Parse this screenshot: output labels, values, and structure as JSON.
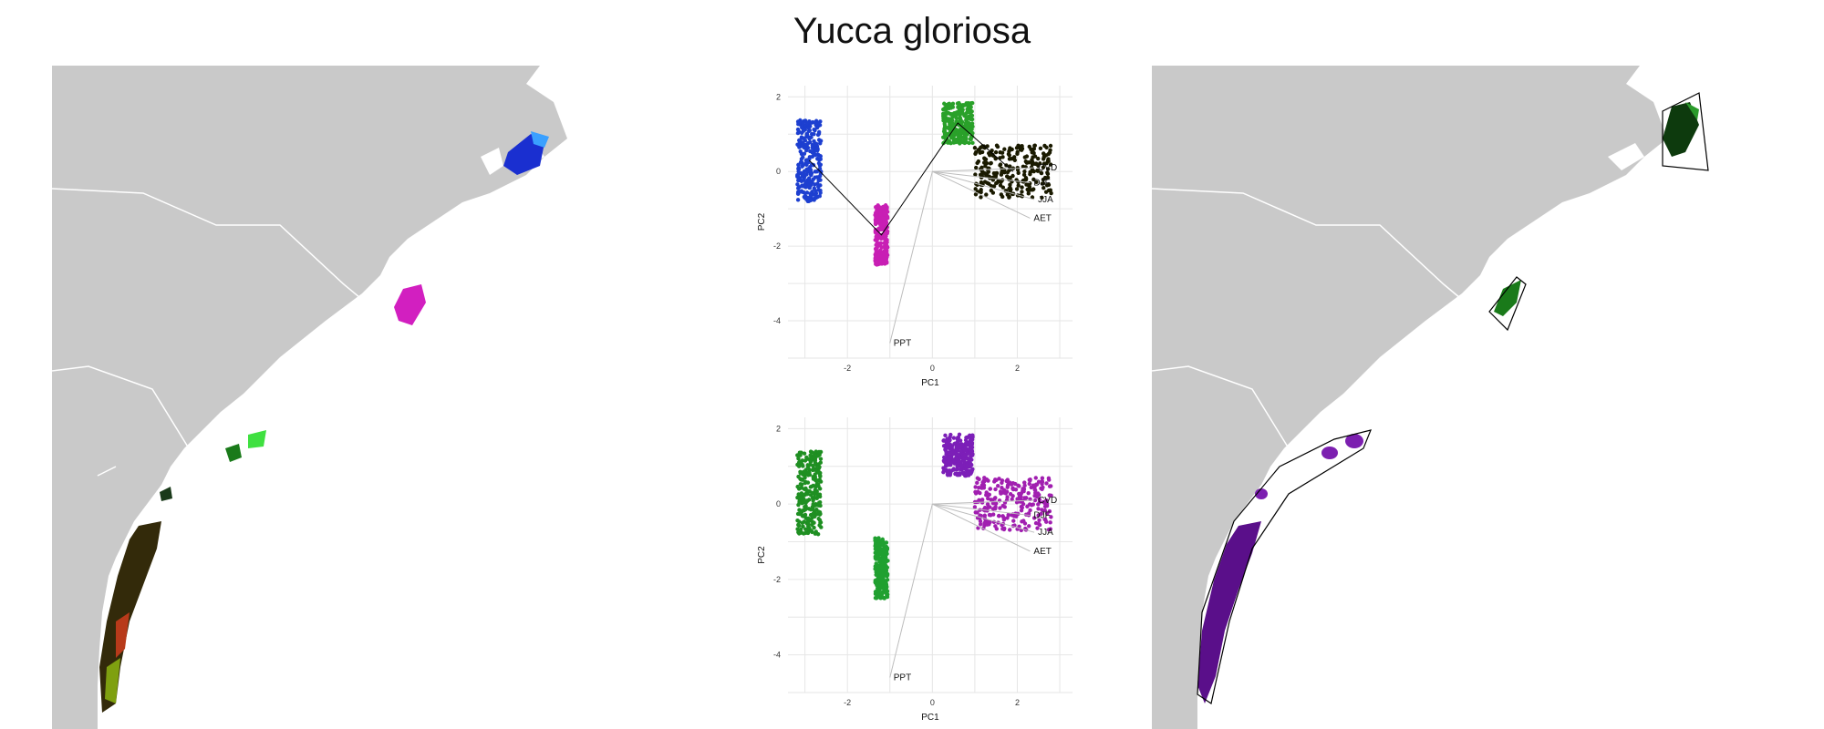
{
  "title": "Yucca gloriosa",
  "colors": {
    "land": "#c9c9c9",
    "water": "#ffffff",
    "border": "#ffffff",
    "grid": "#e6e6e6",
    "hull": "#000000",
    "vector": "#bdbdbd"
  },
  "maps": [
    {
      "name": "map-left",
      "style": "rgb-pc-gradient"
    },
    {
      "name": "map-right",
      "style": "cluster-colors-with-hulls"
    }
  ],
  "chart_data": [
    {
      "type": "scatter",
      "name": "pca-top",
      "xlabel": "PC1",
      "ylabel": "PC2",
      "xlim": [
        -3.4,
        3.3
      ],
      "ylim": [
        -5.0,
        2.3
      ],
      "xticks": [
        -2,
        0,
        2
      ],
      "yticks": [
        -4,
        -2,
        0,
        2
      ],
      "xtick_labels": [
        "-2",
        "0",
        "2"
      ],
      "ytick_labels": [
        "-4",
        "-2",
        "0",
        "2"
      ],
      "grid": true,
      "coloring": "rgb-pc-gradient",
      "clusters": [
        {
          "color": "#1d3fd0",
          "center": [
            -2.9,
            0.3
          ],
          "spread": [
            0.28,
            1.1
          ]
        },
        {
          "color": "#c81fb4",
          "center": [
            -1.2,
            -1.7
          ],
          "spread": [
            0.15,
            0.8
          ]
        },
        {
          "color": "#2aa12a",
          "center": [
            0.6,
            1.3
          ],
          "spread": [
            0.35,
            0.55
          ]
        },
        {
          "color": "#1a1a00",
          "center": [
            1.9,
            0.0
          ],
          "spread": [
            0.9,
            0.7
          ]
        }
      ],
      "vectors": [
        {
          "label": "CVD",
          "x": 2.4,
          "y": 0.1
        },
        {
          "label": "DJF",
          "x": 2.3,
          "y": -0.3
        },
        {
          "label": "JJA",
          "x": 2.4,
          "y": -0.75
        },
        {
          "label": "AET",
          "x": 2.3,
          "y": -1.25
        },
        {
          "label": "PPT",
          "x": -1.0,
          "y": -4.6
        }
      ]
    },
    {
      "type": "scatter",
      "name": "pca-bottom",
      "xlabel": "PC1",
      "ylabel": "PC2",
      "xlim": [
        -3.4,
        3.3
      ],
      "ylim": [
        -5.0,
        2.3
      ],
      "xticks": [
        -2,
        0,
        2
      ],
      "yticks": [
        -4,
        -2,
        0,
        2
      ],
      "xtick_labels": [
        "-2",
        "0",
        "2"
      ],
      "ytick_labels": [
        "-4",
        "-2",
        "0",
        "2"
      ],
      "grid": true,
      "coloring": "cluster-colors",
      "clusters": [
        {
          "color": "#1f8f22",
          "center": [
            -2.9,
            0.3
          ],
          "spread": [
            0.28,
            1.1
          ]
        },
        {
          "color": "#20a030",
          "center": [
            -1.2,
            -1.7
          ],
          "spread": [
            0.15,
            0.8
          ]
        },
        {
          "color": "#7c1fb8",
          "center": [
            0.6,
            1.3
          ],
          "spread": [
            0.35,
            0.55
          ]
        },
        {
          "color": "#a11fb0",
          "center": [
            1.9,
            0.0
          ],
          "spread": [
            0.9,
            0.7
          ]
        }
      ],
      "vectors": [
        {
          "label": "CVD",
          "x": 2.4,
          "y": 0.1
        },
        {
          "label": "DJF",
          "x": 2.3,
          "y": -0.3
        },
        {
          "label": "JJA",
          "x": 2.4,
          "y": -0.75
        },
        {
          "label": "AET",
          "x": 2.3,
          "y": -1.25
        },
        {
          "label": "PPT",
          "x": -1.0,
          "y": -4.6
        }
      ]
    }
  ]
}
